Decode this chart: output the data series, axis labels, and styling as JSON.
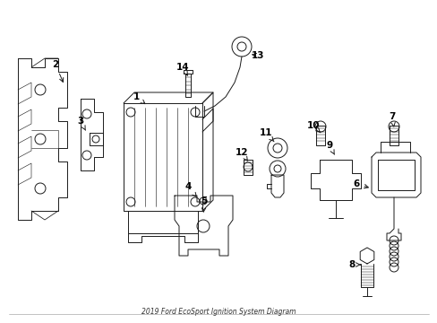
{
  "title": "2019 Ford EcoSport Ignition System Diagram",
  "bg_color": "#ffffff",
  "line_color": "#1a1a1a",
  "label_color": "#000000",
  "figsize": [
    4.89,
    3.6
  ],
  "dpi": 100,
  "border_color": "#cccccc"
}
